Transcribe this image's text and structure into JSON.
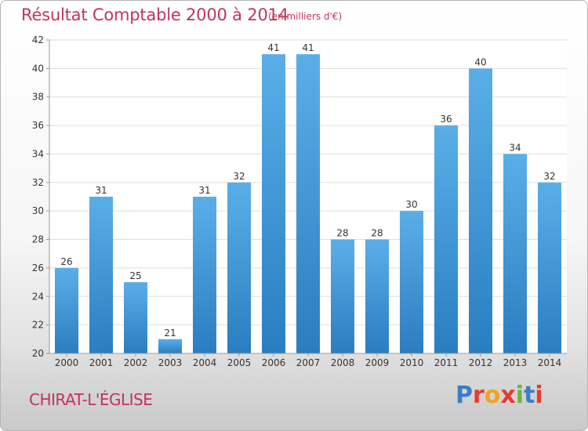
{
  "header": {
    "title": "Résultat Comptable 2000 à 2014",
    "unit": "(en milliers d'€)"
  },
  "footer": {
    "commune": "CHIRAT-L'ÉGLISE",
    "brand": "Proxiti"
  },
  "colors": {
    "title": "#c0345a",
    "bar_light": "#5aaee8",
    "bar_dark": "#2a7ec0",
    "plot_bg": "#ffffff",
    "grid": "#dddddd",
    "brand_letters": [
      "#3a7fc4",
      "#e8392d",
      "#f4a11b",
      "#e8392d",
      "#6db33f",
      "#3a7fc4",
      "#e8392d"
    ]
  },
  "chart_data": {
    "type": "bar",
    "categories": [
      "2000",
      "2001",
      "2002",
      "2003",
      "2004",
      "2005",
      "2006",
      "2007",
      "2008",
      "2009",
      "2010",
      "2011",
      "2012",
      "2013",
      "2014"
    ],
    "values": [
      26,
      31,
      25,
      21,
      31,
      32,
      41,
      41,
      28,
      28,
      30,
      36,
      40,
      34,
      32
    ],
    "data_labels": [
      "26",
      "31",
      "25",
      "21",
      "31",
      "32",
      "41",
      "41",
      "28",
      "28",
      "30",
      "36",
      "40",
      "34",
      "32"
    ],
    "yticks": [
      20,
      22,
      24,
      26,
      28,
      30,
      32,
      34,
      36,
      38,
      40,
      42
    ],
    "ylim": [
      20,
      42
    ],
    "grid": true,
    "legend": "none"
  }
}
